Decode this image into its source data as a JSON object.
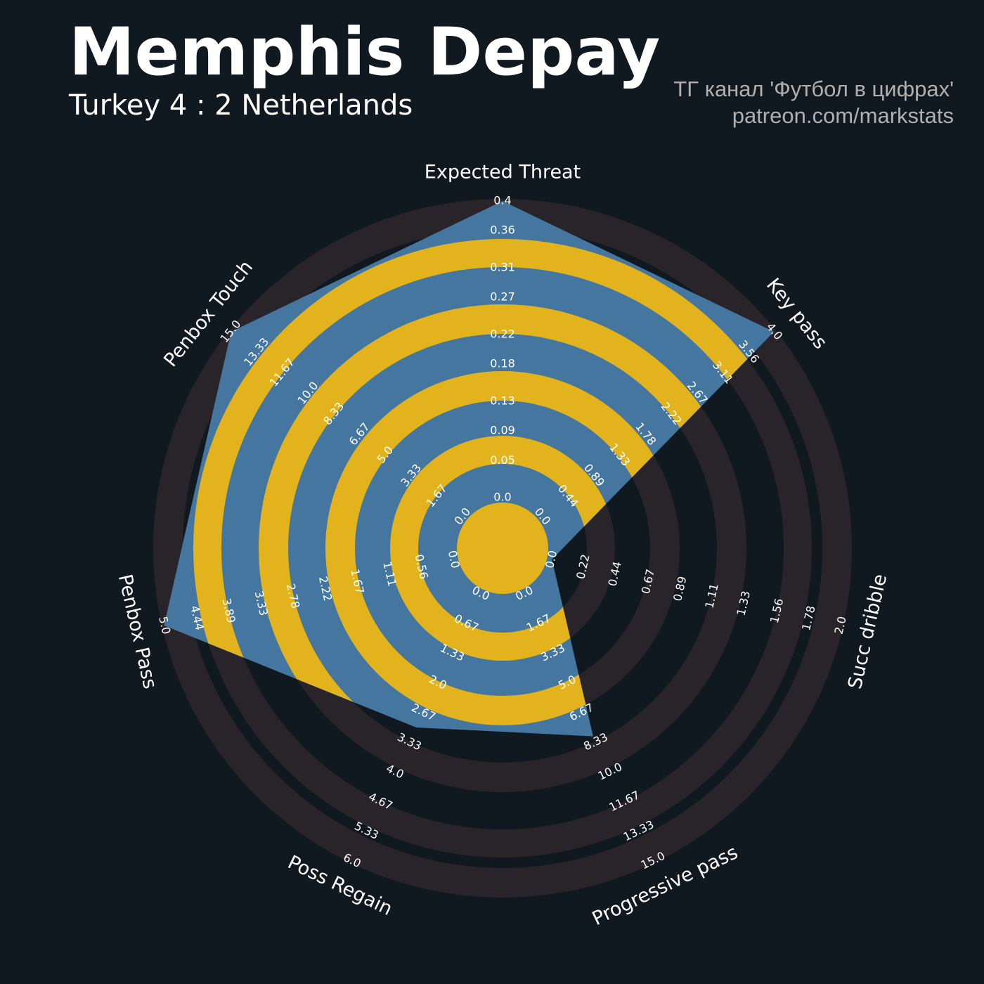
{
  "chart_data": {
    "type": "radar",
    "title": "Memphis Depay",
    "subtitle": "Turkey 4 : 2 Netherlands",
    "annotations": [
      "ТГ канал 'Футбол в цифрах'",
      "patreon.com/markstats"
    ],
    "color": "#44769f",
    "ring_color": "#e2b31c",
    "axes": [
      {
        "name": "Expected Threat",
        "lim": [
          0,
          0.4
        ],
        "ticks": [
          {
            "value": 0,
            "label": "0.0"
          },
          0.05,
          0.09,
          0.13,
          0.18,
          0.22,
          0.27,
          0.31,
          0.36,
          0.4
        ]
      },
      {
        "name": "Key pass",
        "lim": [
          0,
          4
        ],
        "ticks": [
          {
            "value": 0,
            "label": "0.0"
          },
          0.44,
          0.89,
          1.33,
          1.78,
          2.22,
          2.67,
          3.11,
          3.56,
          {
            "value": 4,
            "label": "4.0"
          }
        ]
      },
      {
        "name": "Succ dribble",
        "lim": [
          0,
          2
        ],
        "ticks": [
          {
            "value": 0,
            "label": "0.0"
          },
          0.22,
          0.44,
          0.67,
          0.89,
          1.11,
          1.33,
          1.56,
          1.78,
          {
            "value": 2,
            "label": "2.0"
          }
        ]
      },
      {
        "name": "Progressive pass",
        "lim": [
          0,
          15
        ],
        "ticks": [
          {
            "value": 0,
            "label": "0.0"
          },
          1.67,
          3.33,
          {
            "value": 5,
            "label": "5.0"
          },
          6.67,
          8.33,
          {
            "value": 10,
            "label": "10.0"
          },
          11.67,
          13.33,
          {
            "value": 15,
            "label": "15.0"
          }
        ]
      },
      {
        "name": "Poss Regain",
        "lim": [
          0,
          6
        ],
        "ticks": [
          {
            "value": 0,
            "label": "0.0"
          },
          0.67,
          1.33,
          {
            "value": 2,
            "label": "2.0"
          },
          2.67,
          3.33,
          {
            "value": 4,
            "label": "4.0"
          },
          4.67,
          5.33,
          {
            "value": 6,
            "label": "6.0"
          }
        ]
      },
      {
        "name": "Penbox Pass",
        "lim": [
          0,
          5
        ],
        "ticks": [
          {
            "value": 0,
            "label": "0.0"
          },
          0.56,
          1.11,
          1.67,
          2.22,
          2.78,
          3.33,
          3.89,
          4.44,
          {
            "value": 5,
            "label": "5.0"
          }
        ]
      },
      {
        "name": "Penbox Touch",
        "lim": [
          0,
          15
        ],
        "ticks": [
          {
            "value": 0,
            "label": "0.0"
          },
          1.67,
          3.33,
          {
            "value": 5,
            "label": "5.0"
          },
          6.67,
          8.33,
          {
            "value": 10,
            "label": "10.0"
          },
          11.67,
          13.33,
          {
            "value": 15,
            "label": "15.0"
          }
        ]
      }
    ],
    "values": [
      0.4,
      4,
      0,
      8,
      3,
      5,
      15
    ]
  }
}
